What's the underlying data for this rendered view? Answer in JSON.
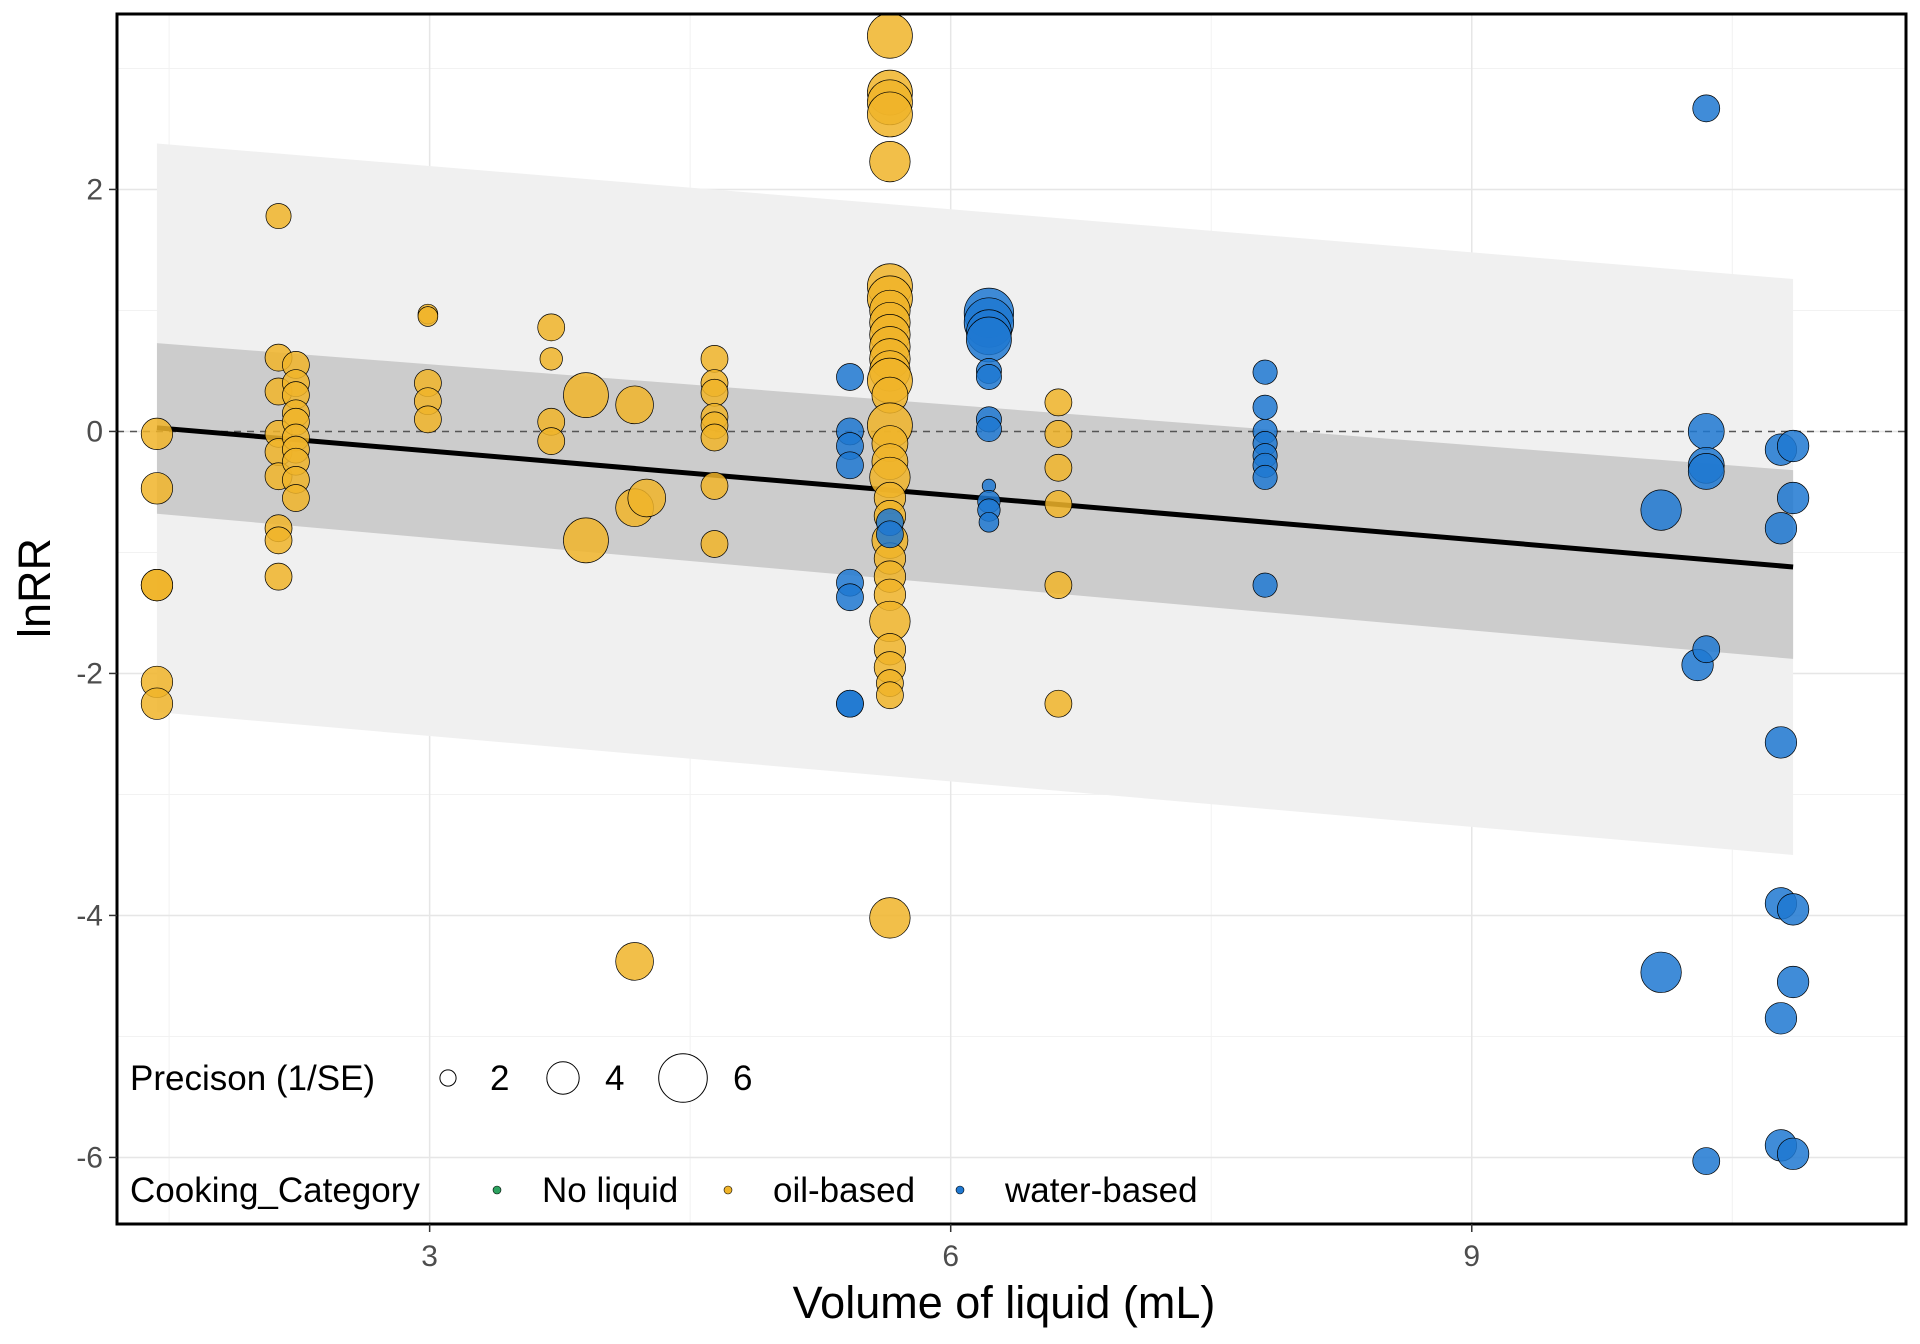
{
  "chart_data": {
    "type": "scatter",
    "title": "",
    "xlabel": "Volume of liquid (mL)",
    "ylabel": "lnRR",
    "xlim": [
      1.2,
      11.5
    ],
    "ylim": [
      -6.55,
      3.45
    ],
    "x_ticks": [
      3,
      6,
      9
    ],
    "y_ticks": [
      -6,
      -4,
      -2,
      0,
      2
    ],
    "x_tick_labels": [
      "3",
      "6",
      "9"
    ],
    "y_tick_labels": [
      "-6",
      "-4",
      "-2",
      "0",
      "2"
    ],
    "grid": true,
    "reference_line": {
      "y": 0,
      "style": "dashed"
    },
    "regression": {
      "x": [
        1.43,
        10.85
      ],
      "fit": [
        0.03,
        -1.12
      ],
      "ci_lower": [
        -0.68,
        -1.88
      ],
      "ci_upper": [
        0.73,
        -0.32
      ],
      "pi_lower": [
        -2.32,
        -3.5
      ],
      "pi_upper": [
        2.38,
        1.26
      ]
    },
    "legend": {
      "placement": "bottom-left",
      "size_title": "Precison (1/SE)",
      "size_entries": [
        {
          "label": "2",
          "value": 2
        },
        {
          "label": "4",
          "value": 4
        },
        {
          "label": "6",
          "value": 6
        }
      ],
      "color_title": "Cooking_Category",
      "color_entries": [
        {
          "label": "No liquid",
          "color": "#2ca25f"
        },
        {
          "label": "oil-based",
          "color": "#f0b429"
        },
        {
          "label": "water-based",
          "color": "#1f78d1"
        }
      ]
    },
    "series": [
      {
        "name": "oil-based",
        "color": "#f0b429",
        "points": [
          [
            1.43,
            -0.02,
            3.5
          ],
          [
            1.43,
            -0.47,
            3.5
          ],
          [
            1.43,
            -1.27,
            3.5
          ],
          [
            1.43,
            -1.27,
            3.5
          ],
          [
            1.43,
            -2.07,
            3.5
          ],
          [
            1.43,
            -2.25,
            3.5
          ],
          [
            2.13,
            1.78,
            2.8
          ],
          [
            2.13,
            0.61,
            3.0
          ],
          [
            2.13,
            0.33,
            3.0
          ],
          [
            2.13,
            -0.02,
            3.0
          ],
          [
            2.13,
            -0.17,
            3.0
          ],
          [
            2.13,
            -0.37,
            3.0
          ],
          [
            2.13,
            -0.8,
            3.0
          ],
          [
            2.13,
            -0.9,
            3.0
          ],
          [
            2.13,
            -1.2,
            3.0
          ],
          [
            2.23,
            0.55,
            3.0
          ],
          [
            2.23,
            0.4,
            3.0
          ],
          [
            2.23,
            0.3,
            3.0
          ],
          [
            2.23,
            0.15,
            3.0
          ],
          [
            2.23,
            0.08,
            3.0
          ],
          [
            2.23,
            -0.05,
            3.0
          ],
          [
            2.23,
            -0.15,
            3.0
          ],
          [
            2.23,
            -0.25,
            3.0
          ],
          [
            2.23,
            -0.4,
            3.0
          ],
          [
            2.23,
            -0.55,
            3.0
          ],
          [
            2.99,
            0.97,
            2.2
          ],
          [
            2.99,
            0.95,
            2.2
          ],
          [
            2.99,
            0.4,
            3.0
          ],
          [
            2.99,
            0.25,
            3.0
          ],
          [
            2.99,
            0.1,
            3.0
          ],
          [
            3.7,
            0.86,
            3.0
          ],
          [
            3.7,
            0.6,
            2.5
          ],
          [
            3.7,
            0.08,
            3.0
          ],
          [
            3.7,
            -0.08,
            3.0
          ],
          [
            3.9,
            0.3,
            5.0
          ],
          [
            3.9,
            -0.9,
            5.0
          ],
          [
            4.18,
            0.22,
            4.2
          ],
          [
            4.18,
            -0.63,
            4.2
          ],
          [
            4.25,
            -0.55,
            4.2
          ],
          [
            4.18,
            -4.38,
            4.2
          ],
          [
            4.64,
            0.6,
            3.0
          ],
          [
            4.64,
            0.4,
            3.0
          ],
          [
            4.64,
            0.32,
            3.0
          ],
          [
            4.64,
            0.12,
            3.0
          ],
          [
            4.64,
            0.05,
            3.0
          ],
          [
            4.64,
            -0.05,
            3.0
          ],
          [
            4.64,
            -0.45,
            3.0
          ],
          [
            4.64,
            -0.93,
            3.0
          ],
          [
            5.65,
            3.27,
            5.0
          ],
          [
            5.65,
            2.8,
            5.0
          ],
          [
            5.65,
            2.72,
            5.0
          ],
          [
            5.65,
            2.62,
            5.0
          ],
          [
            5.65,
            2.23,
            4.5
          ],
          [
            5.65,
            1.2,
            5.0
          ],
          [
            5.65,
            1.1,
            5.0
          ],
          [
            5.65,
            1.0,
            4.5
          ],
          [
            5.65,
            0.9,
            4.5
          ],
          [
            5.65,
            0.8,
            4.5
          ],
          [
            5.65,
            0.7,
            4.5
          ],
          [
            5.65,
            0.6,
            4.5
          ],
          [
            5.65,
            0.5,
            4.5
          ],
          [
            5.65,
            0.42,
            5.0
          ],
          [
            5.65,
            0.3,
            4.0
          ],
          [
            5.65,
            0.05,
            5.0
          ],
          [
            5.65,
            -0.1,
            4.0
          ],
          [
            5.65,
            -0.25,
            4.0
          ],
          [
            5.65,
            -0.38,
            4.5
          ],
          [
            5.65,
            -0.55,
            3.5
          ],
          [
            5.65,
            -0.7,
            3.5
          ],
          [
            5.65,
            -0.9,
            4.0
          ],
          [
            5.65,
            -1.05,
            3.5
          ],
          [
            5.65,
            -1.2,
            3.5
          ],
          [
            5.65,
            -1.35,
            3.5
          ],
          [
            5.65,
            -1.57,
            4.5
          ],
          [
            5.65,
            -1.8,
            3.5
          ],
          [
            5.65,
            -1.95,
            3.5
          ],
          [
            5.65,
            -2.08,
            3.0
          ],
          [
            5.65,
            -2.18,
            3.0
          ],
          [
            5.65,
            -4.02,
            4.5
          ],
          [
            6.62,
            0.24,
            3.0
          ],
          [
            6.62,
            -0.02,
            3.0
          ],
          [
            6.62,
            -0.3,
            3.0
          ],
          [
            6.62,
            -0.6,
            3.0
          ],
          [
            6.62,
            -1.27,
            3.0
          ],
          [
            6.62,
            -2.25,
            3.0
          ]
        ]
      },
      {
        "name": "water-based",
        "color": "#1f78d1",
        "points": [
          [
            5.42,
            0.45,
            3.0
          ],
          [
            5.42,
            0.0,
            3.0
          ],
          [
            5.42,
            -0.12,
            3.0
          ],
          [
            5.42,
            -0.28,
            3.0
          ],
          [
            5.42,
            -1.25,
            3.0
          ],
          [
            5.42,
            -1.37,
            3.0
          ],
          [
            5.42,
            -2.25,
            3.0
          ],
          [
            5.42,
            -2.25,
            3.0
          ],
          [
            5.65,
            -0.75,
            3.0
          ],
          [
            5.65,
            -0.85,
            3.0
          ],
          [
            6.22,
            0.98,
            5.5
          ],
          [
            6.22,
            0.9,
            5.5
          ],
          [
            6.22,
            0.82,
            5.0
          ],
          [
            6.22,
            0.76,
            5.0
          ],
          [
            6.22,
            0.5,
            2.8
          ],
          [
            6.22,
            0.45,
            2.8
          ],
          [
            6.22,
            0.1,
            2.8
          ],
          [
            6.22,
            0.02,
            2.8
          ],
          [
            6.22,
            -0.45,
            1.5
          ],
          [
            6.22,
            -0.58,
            2.5
          ],
          [
            6.22,
            -0.65,
            2.5
          ],
          [
            6.22,
            -0.75,
            2.2
          ],
          [
            7.81,
            0.49,
            2.7
          ],
          [
            7.81,
            0.2,
            2.7
          ],
          [
            7.81,
            0.0,
            2.7
          ],
          [
            7.81,
            -0.1,
            2.7
          ],
          [
            7.81,
            -0.2,
            2.7
          ],
          [
            7.81,
            -0.28,
            2.7
          ],
          [
            7.81,
            -0.38,
            2.7
          ],
          [
            7.81,
            -1.27,
            2.7
          ],
          [
            10.09,
            -0.65,
            4.5
          ],
          [
            10.09,
            -4.47,
            4.5
          ],
          [
            10.3,
            -1.93,
            3.5
          ],
          [
            10.35,
            -1.8,
            3.0
          ],
          [
            10.35,
            2.67,
            3.0
          ],
          [
            10.35,
            0.0,
            4.0
          ],
          [
            10.35,
            -0.28,
            4.0
          ],
          [
            10.35,
            -0.33,
            4.0
          ],
          [
            10.35,
            -6.03,
            3.0
          ],
          [
            10.78,
            -0.15,
            3.5
          ],
          [
            10.78,
            -0.8,
            3.5
          ],
          [
            10.78,
            -2.57,
            3.5
          ],
          [
            10.78,
            -3.9,
            3.5
          ],
          [
            10.78,
            -4.85,
            3.5
          ],
          [
            10.78,
            -5.9,
            3.5
          ],
          [
            10.85,
            -0.12,
            3.5
          ],
          [
            10.85,
            -0.55,
            3.5
          ],
          [
            10.85,
            -3.95,
            3.5
          ],
          [
            10.85,
            -4.55,
            3.5
          ],
          [
            10.85,
            -5.97,
            3.5
          ]
        ]
      }
    ]
  }
}
